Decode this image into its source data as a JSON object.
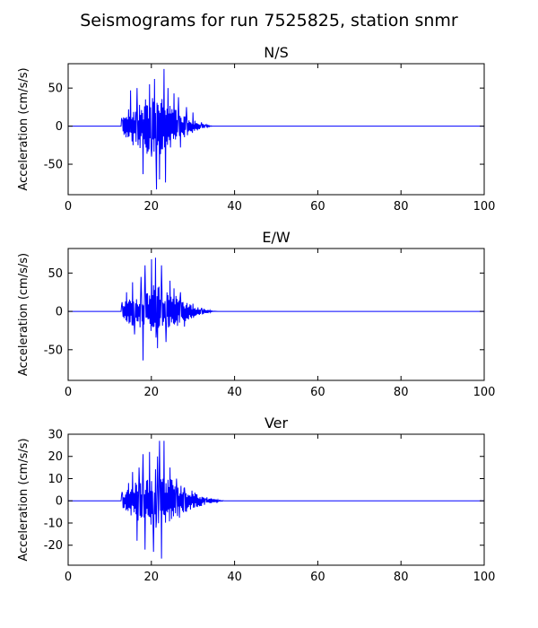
{
  "figure": {
    "title": "Seismograms for run 7525825, station snmr"
  },
  "chart_data": [
    {
      "type": "line",
      "title": "N/S",
      "xlabel": "",
      "ylabel": "Acceleration (cm/s/s)",
      "xlim": [
        0,
        100
      ],
      "ylim": [
        -90,
        82
      ],
      "xticks": [
        0,
        20,
        40,
        60,
        80,
        100
      ],
      "yticks": [
        -50,
        0,
        50
      ],
      "line_color": "#0000ff",
      "signal": {
        "onset": 12.8,
        "peak_time": 21.0,
        "end": 35.0,
        "max": 75,
        "min": -83
      },
      "peaks": [
        {
          "x": 13.0,
          "y": 8
        },
        {
          "x": 14.5,
          "y": 22
        },
        {
          "x": 15.0,
          "y": 47
        },
        {
          "x": 15.6,
          "y": -25
        },
        {
          "x": 16.5,
          "y": 50
        },
        {
          "x": 17.2,
          "y": 28
        },
        {
          "x": 18.0,
          "y": -63
        },
        {
          "x": 19.5,
          "y": 55
        },
        {
          "x": 20.0,
          "y": -40
        },
        {
          "x": 20.8,
          "y": 62
        },
        {
          "x": 21.2,
          "y": -83
        },
        {
          "x": 22.0,
          "y": -70
        },
        {
          "x": 23.0,
          "y": 75
        },
        {
          "x": 23.4,
          "y": -74
        },
        {
          "x": 24.0,
          "y": 50
        },
        {
          "x": 25.5,
          "y": 43
        },
        {
          "x": 26.5,
          "y": 38
        },
        {
          "x": 27.0,
          "y": -28
        },
        {
          "x": 28.5,
          "y": 25
        },
        {
          "x": 30.0,
          "y": 18
        },
        {
          "x": 32.0,
          "y": 5
        },
        {
          "x": 33.0,
          "y": 2
        }
      ]
    },
    {
      "type": "line",
      "title": "E/W",
      "xlabel": "",
      "ylabel": "Acceleration (cm/s/s)",
      "xlim": [
        0,
        100
      ],
      "ylim": [
        -90,
        82
      ],
      "xticks": [
        0,
        20,
        40,
        60,
        80,
        100
      ],
      "yticks": [
        -50,
        0,
        50
      ],
      "line_color": "#0000ff",
      "signal": {
        "onset": 12.8,
        "peak_time": 21.0,
        "end": 36.0,
        "max": 70,
        "min": -64
      },
      "peaks": [
        {
          "x": 13.0,
          "y": 12
        },
        {
          "x": 14.0,
          "y": 25
        },
        {
          "x": 15.5,
          "y": 38
        },
        {
          "x": 16.0,
          "y": -30
        },
        {
          "x": 17.5,
          "y": 45
        },
        {
          "x": 18.5,
          "y": 60
        },
        {
          "x": 18.0,
          "y": -64
        },
        {
          "x": 20.0,
          "y": 68
        },
        {
          "x": 21.0,
          "y": 70
        },
        {
          "x": 21.5,
          "y": -48
        },
        {
          "x": 22.5,
          "y": 60
        },
        {
          "x": 23.5,
          "y": -40
        },
        {
          "x": 24.5,
          "y": 40
        },
        {
          "x": 25.5,
          "y": 30
        },
        {
          "x": 27.0,
          "y": 25
        },
        {
          "x": 28.0,
          "y": -20
        },
        {
          "x": 30.0,
          "y": 10
        },
        {
          "x": 32.0,
          "y": 4
        }
      ]
    },
    {
      "type": "line",
      "title": "Ver",
      "xlabel": "",
      "ylabel": "Acceleration (cm/s/s)",
      "xlim": [
        0,
        100
      ],
      "ylim": [
        -29,
        30
      ],
      "xticks": [
        0,
        20,
        40,
        60,
        80,
        100
      ],
      "yticks": [
        -20,
        -10,
        0,
        10,
        20,
        30
      ],
      "line_color": "#0000ff",
      "signal": {
        "onset": 12.8,
        "peak_time": 21.0,
        "end": 38.0,
        "max": 27,
        "min": -26
      },
      "peaks": [
        {
          "x": 13.0,
          "y": 4
        },
        {
          "x": 14.5,
          "y": 8
        },
        {
          "x": 15.5,
          "y": 13
        },
        {
          "x": 16.5,
          "y": -18
        },
        {
          "x": 17.0,
          "y": 15
        },
        {
          "x": 18.0,
          "y": 21
        },
        {
          "x": 18.5,
          "y": -22
        },
        {
          "x": 19.5,
          "y": 22
        },
        {
          "x": 20.5,
          "y": -23
        },
        {
          "x": 21.5,
          "y": 20
        },
        {
          "x": 22.0,
          "y": 27
        },
        {
          "x": 22.5,
          "y": -26
        },
        {
          "x": 23.0,
          "y": 27
        },
        {
          "x": 24.5,
          "y": 15
        },
        {
          "x": 26.0,
          "y": 10
        },
        {
          "x": 28.0,
          "y": 6
        },
        {
          "x": 30.0,
          "y": 3
        },
        {
          "x": 33.0,
          "y": 1
        }
      ]
    }
  ]
}
